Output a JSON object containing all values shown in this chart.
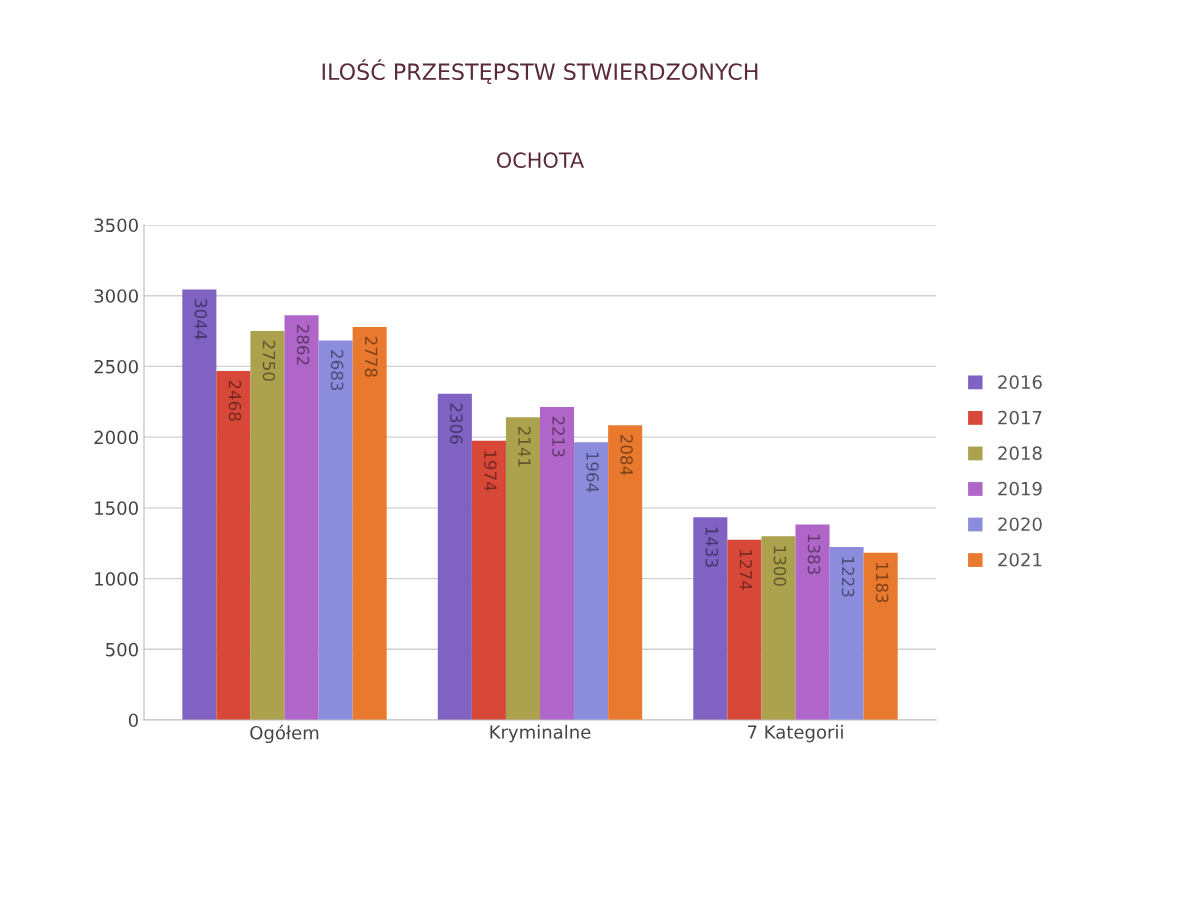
{
  "chart_data": {
    "type": "bar",
    "title": "ILOŚĆ PRZESTĘPSTW STWIERDZONYCH",
    "subtitle": "OCHOTA",
    "categories": [
      "Ogółem",
      "Kryminalne",
      "7 Kategorii"
    ],
    "series": [
      {
        "name": "2016",
        "color": "#7f62c2",
        "values": [
          3044,
          2306,
          1433
        ]
      },
      {
        "name": "2017",
        "color": "#d84838",
        "values": [
          2468,
          1974,
          1274
        ]
      },
      {
        "name": "2018",
        "color": "#aca24e",
        "values": [
          2750,
          2141,
          1300
        ]
      },
      {
        "name": "2019",
        "color": "#b066c8",
        "values": [
          2862,
          2213,
          1383
        ]
      },
      {
        "name": "2020",
        "color": "#8c8cdc",
        "values": [
          2683,
          1964,
          1223
        ]
      },
      {
        "name": "2021",
        "color": "#e8792e",
        "values": [
          2778,
          2084,
          1183
        ]
      }
    ],
    "ylim": [
      0,
      3500
    ],
    "yticks": [
      0,
      500,
      1000,
      1500,
      2000,
      2500,
      3000,
      3500
    ],
    "grid": "y",
    "legend": "right",
    "data_labels": true
  }
}
